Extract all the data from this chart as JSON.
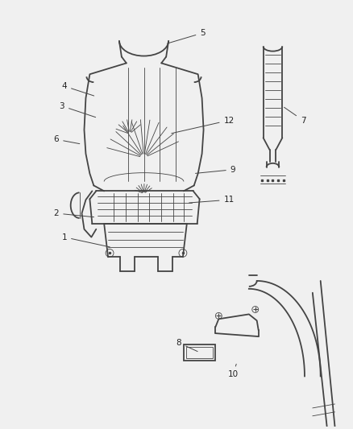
{
  "background_color": "#f0f0f0",
  "line_color": "#444444",
  "label_color": "#222222",
  "figsize": [
    4.38,
    5.33
  ],
  "dpi": 100,
  "lw_main": 1.3,
  "lw_thin": 0.6,
  "font_size": 7.5
}
